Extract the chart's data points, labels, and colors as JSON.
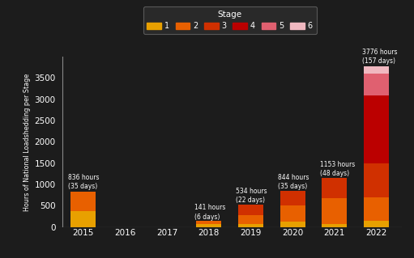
{
  "years": [
    2015,
    2016,
    2017,
    2018,
    2019,
    2020,
    2021,
    2022
  ],
  "stages": {
    "1": {
      "color": "#e8a000",
      "values": [
        380,
        0,
        0,
        80,
        80,
        120,
        80,
        150
      ]
    },
    "2": {
      "color": "#e86000",
      "values": [
        456,
        0,
        0,
        61,
        200,
        380,
        600,
        550
      ]
    },
    "3": {
      "color": "#d03000",
      "values": [
        0,
        0,
        0,
        0,
        254,
        344,
        473,
        800
      ]
    },
    "4": {
      "color": "#bb0000",
      "values": [
        0,
        0,
        0,
        0,
        0,
        0,
        0,
        1600
      ]
    },
    "5": {
      "color": "#e06070",
      "values": [
        0,
        0,
        0,
        0,
        0,
        0,
        0,
        500
      ]
    },
    "6": {
      "color": "#f0b8c0",
      "values": [
        0,
        0,
        0,
        0,
        0,
        0,
        0,
        176
      ]
    }
  },
  "annotations": {
    "2015": "836 hours\n(35 days)",
    "2018": "141 hours\n(6 days)",
    "2019": "534 hours\n(22 days)",
    "2020": "844 hours\n(35 days)",
    "2021": "1153 hours\n(48 days)",
    "2022": "3776 hours\n(157 days)"
  },
  "ann_xi": {
    "2015": -0.35,
    "2018": 2.65,
    "2019": 3.65,
    "2020": 4.65,
    "2021": 5.65,
    "2022": 6.65
  },
  "ann_yi": {
    "2015": 860,
    "2018": 155,
    "2019": 550,
    "2020": 860,
    "2021": 1170,
    "2022": 3820
  },
  "title": "Stage",
  "ylabel": "Hours of National Loadshedding per Stage",
  "ylim": [
    0,
    4000
  ],
  "yticks": [
    0,
    500,
    1000,
    1500,
    2000,
    2500,
    3000,
    3500
  ],
  "background_color": "#1c1c1c",
  "text_color": "#ffffff",
  "legend_bg": "#2d2d2d",
  "legend_edge": "#666666",
  "bar_width": 0.6
}
